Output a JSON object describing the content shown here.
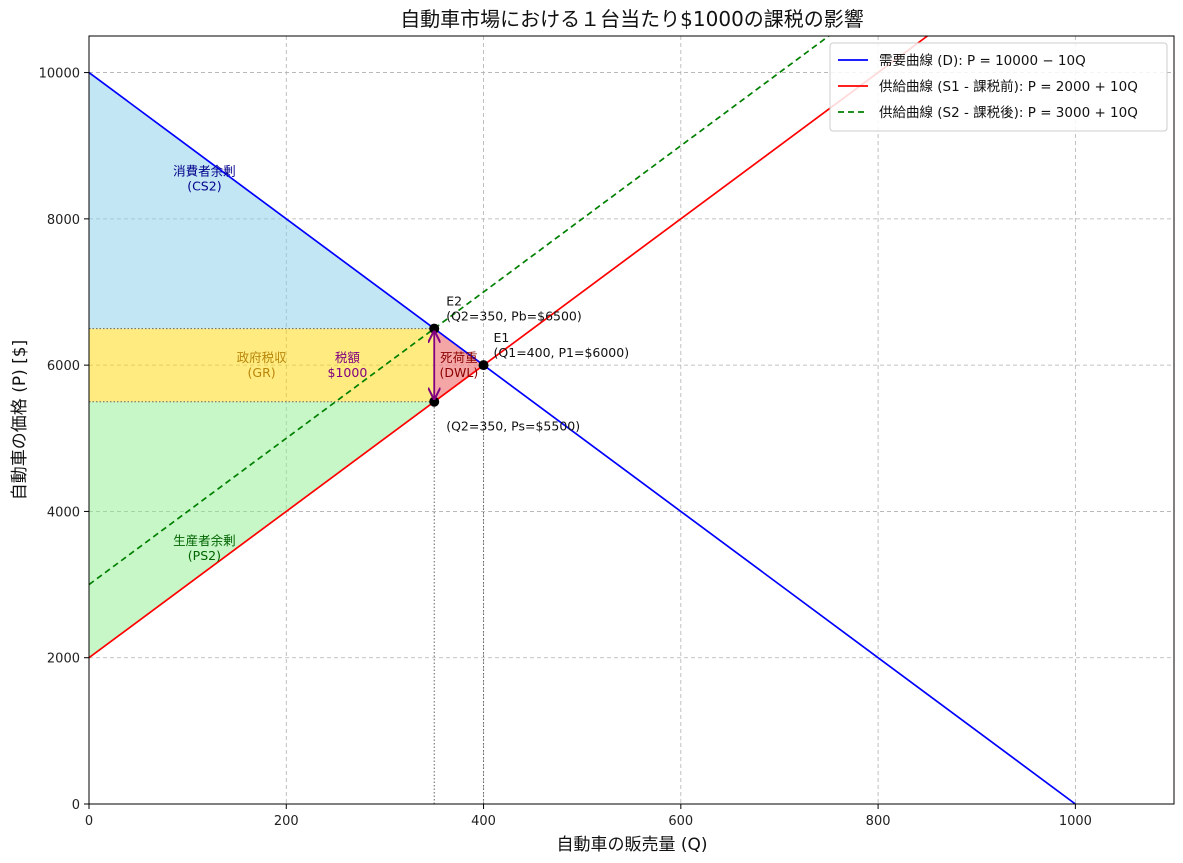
{
  "chart_data": {
    "type": "line",
    "title": "自動車市場における１台当たり$1000の課税の影響",
    "xlabel": "自動車の販売量 (Q)",
    "ylabel": "自動車の価格 (P) [$]",
    "xlim": [
      0,
      1100
    ],
    "ylim": [
      0,
      10500
    ],
    "xticks": [
      0,
      200,
      400,
      600,
      800,
      1000
    ],
    "yticks": [
      0,
      2000,
      4000,
      6000,
      8000,
      10000
    ],
    "grid": true,
    "legend_position": "top-right",
    "series": [
      {
        "name": "需要曲線 (D): P = 10000 − 10Q",
        "color": "#0000ff",
        "dash": "solid",
        "intercept": 10000,
        "slope": -10,
        "points": [
          [
            0,
            10000
          ],
          [
            1000,
            0
          ]
        ]
      },
      {
        "name": "供給曲線 (S1 - 課税前): P = 2000 + 10Q",
        "color": "#ff0000",
        "dash": "solid",
        "intercept": 2000,
        "slope": 10,
        "points": [
          [
            0,
            2000
          ],
          [
            850,
            10500
          ]
        ]
      },
      {
        "name": "供給曲線 (S2 - 課税後): P = 3000 + 10Q",
        "color": "#008000",
        "dash": "dashed",
        "intercept": 3000,
        "slope": 10,
        "points": [
          [
            0,
            3000
          ],
          [
            750,
            10500
          ]
        ]
      }
    ],
    "regions": [
      {
        "label": "消費者余剰\n(CS2)",
        "color": "#87ceeb",
        "text_color": "#00008b",
        "polygon": [
          [
            0,
            10000
          ],
          [
            350,
            6500
          ],
          [
            0,
            6500
          ]
        ],
        "label_at": [
          117,
          8550
        ]
      },
      {
        "label": "政府税収\n(GR)",
        "color": "#ffd700",
        "text_color": "#b8860b",
        "polygon": [
          [
            0,
            6500
          ],
          [
            350,
            6500
          ],
          [
            350,
            5500
          ],
          [
            0,
            5500
          ]
        ],
        "label_at": [
          175,
          6000
        ]
      },
      {
        "label": "生産者余剰\n(PS2)",
        "color": "#90ee90",
        "text_color": "#006400",
        "polygon": [
          [
            0,
            5500
          ],
          [
            350,
            5500
          ],
          [
            0,
            2000
          ]
        ],
        "label_at": [
          117,
          3500
        ]
      },
      {
        "label": "死荷重\n(DWL)",
        "color": "#f08080",
        "text_color": "#8b0000",
        "polygon": [
          [
            350,
            6500
          ],
          [
            400,
            6000
          ],
          [
            350,
            5500
          ]
        ],
        "label_at": [
          375,
          6000
        ]
      }
    ],
    "points": [
      {
        "name": "E2",
        "x": 350,
        "y": 6500,
        "label": "E2\n(Q2=350, Pb=$6500)"
      },
      {
        "name": "E1",
        "x": 400,
        "y": 6000,
        "label": "E1\n(Q1=400, P1=$6000)"
      },
      {
        "name": "Ps",
        "x": 350,
        "y": 5500,
        "label": "(Q2=350, Ps=$5500)"
      }
    ],
    "tax_arrow": {
      "x": 350,
      "y_from": 5500,
      "y_to": 6500,
      "color": "#800080",
      "label": "税額\n$1000",
      "label_at": [
        262,
        6000
      ]
    },
    "guide_lines": [
      {
        "type": "h",
        "y": 6500,
        "x_from": 0,
        "x_to": 350
      },
      {
        "type": "h",
        "y": 5500,
        "x_from": 0,
        "x_to": 350
      },
      {
        "type": "v",
        "x": 350,
        "y_from": 0,
        "y_to": 6500
      },
      {
        "type": "v",
        "x": 400,
        "y_from": 0,
        "y_to": 6000
      }
    ]
  }
}
